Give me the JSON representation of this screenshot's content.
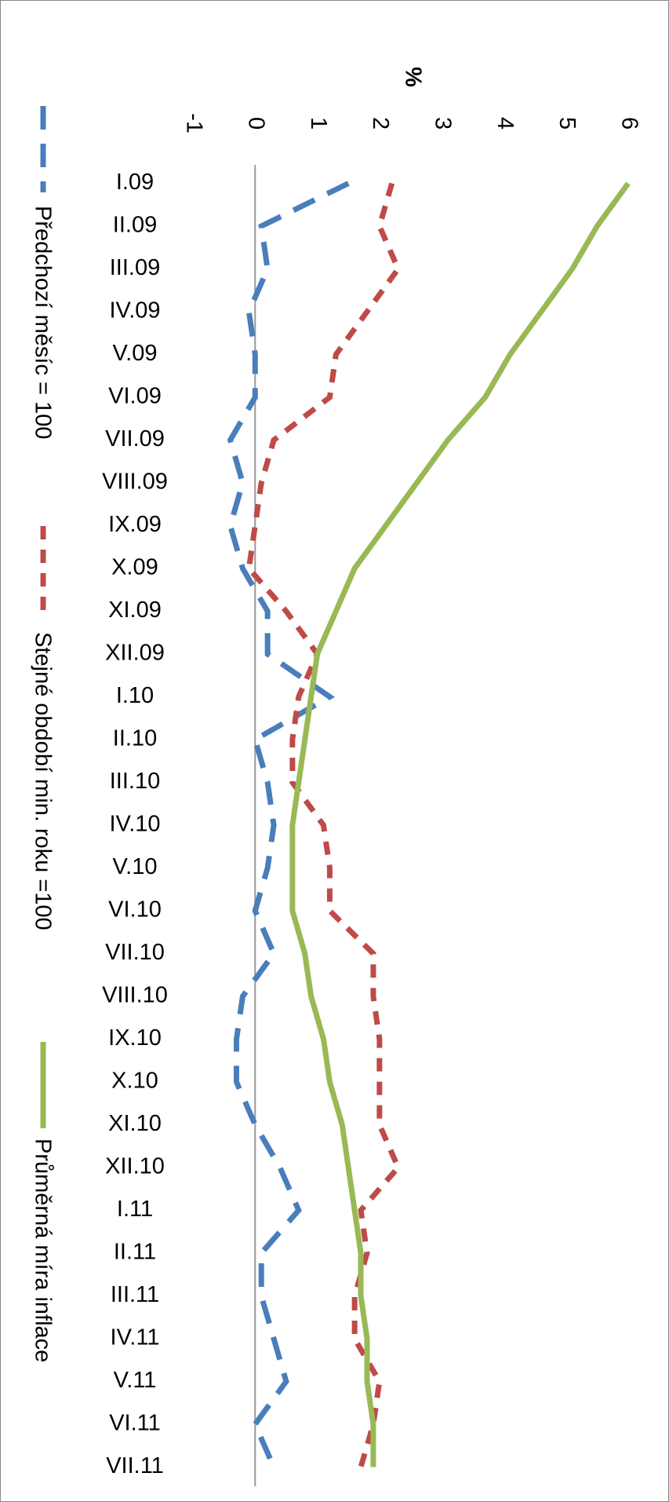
{
  "chart_data": {
    "type": "line",
    "y_label": "%",
    "categories": [
      "I.09",
      "II.09",
      "III.09",
      "IV.09",
      "V.09",
      "VI.09",
      "VII.09",
      "VIII.09",
      "IX.09",
      "X.09",
      "XI.09",
      "XII.09",
      "I.10",
      "II.10",
      "III.10",
      "IV.10",
      "V.10",
      "VI.10",
      "VII.10",
      "VIII.10",
      "IX.10",
      "X.10",
      "XI.10",
      "XII.10",
      "I.11",
      "II.11",
      "III.11",
      "IV.11",
      "V.11",
      "VI.11",
      "VII.11"
    ],
    "series": [
      {
        "name": "Předchozí měsíc = 100",
        "color": "#4a7ebb",
        "dash": "long",
        "values": [
          1.5,
          0.1,
          0.2,
          -0.1,
          0.0,
          0.0,
          -0.4,
          -0.2,
          -0.4,
          -0.2,
          0.2,
          0.2,
          1.2,
          0.0,
          0.2,
          0.3,
          0.2,
          0.0,
          0.3,
          -0.2,
          -0.3,
          -0.3,
          0.0,
          0.4,
          0.7,
          0.1,
          0.1,
          0.3,
          0.5,
          0.0,
          0.3
        ]
      },
      {
        "name": "Stejné období min. roku =100",
        "color": "#be4b48",
        "dash": "short",
        "values": [
          2.2,
          2.0,
          2.3,
          1.8,
          1.3,
          1.2,
          0.3,
          0.1,
          0.0,
          -0.1,
          0.5,
          1.0,
          0.7,
          0.6,
          0.6,
          1.1,
          1.2,
          1.2,
          1.9,
          1.9,
          2.0,
          2.0,
          2.0,
          2.3,
          1.7,
          1.8,
          1.6,
          1.6,
          2.0,
          1.9,
          1.7
        ]
      },
      {
        "name": "Průměrná míra inflace",
        "color": "#98b954",
        "dash": "solid",
        "values": [
          6.0,
          5.5,
          5.1,
          4.6,
          4.1,
          3.7,
          3.1,
          2.6,
          2.1,
          1.6,
          1.3,
          1.0,
          0.9,
          0.8,
          0.7,
          0.6,
          0.6,
          0.6,
          0.8,
          0.9,
          1.1,
          1.2,
          1.4,
          1.5,
          1.6,
          1.7,
          1.7,
          1.8,
          1.8,
          1.9,
          1.9
        ]
      }
    ],
    "ylim": [
      -1,
      6
    ],
    "yticks": [
      -1,
      0,
      1,
      2,
      3,
      4,
      5,
      6
    ]
  }
}
